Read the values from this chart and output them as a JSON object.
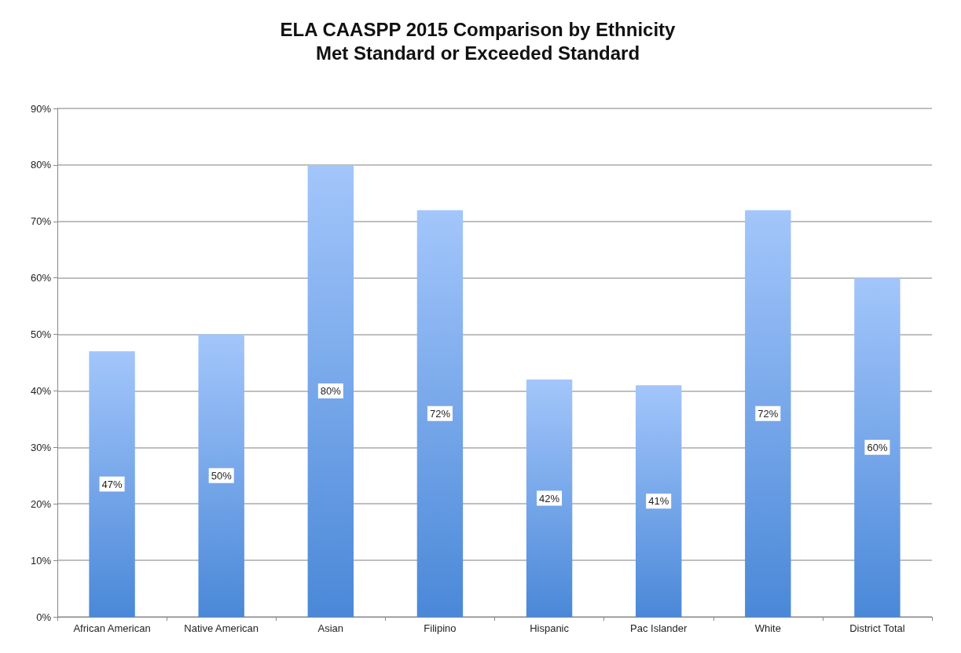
{
  "chart_data": {
    "type": "bar",
    "title": "ELA CAASPP 2015 Comparison by Ethnicity",
    "subtitle": "Met Standard or Exceeded Standard",
    "categories": [
      "African American",
      "Native American",
      "Asian",
      "Filipino",
      "Hispanic",
      "Pac Islander",
      "White",
      "District Total"
    ],
    "values": [
      47,
      50,
      80,
      72,
      42,
      41,
      72,
      60
    ],
    "value_labels": [
      "47%",
      "50%",
      "80%",
      "72%",
      "42%",
      "41%",
      "72%",
      "60%"
    ],
    "color": "#4a88d8",
    "ylim": [
      0,
      90
    ],
    "yticks": [
      {
        "value": 0,
        "label": "0%"
      },
      {
        "value": 10,
        "label": "10%"
      },
      {
        "value": 20,
        "label": "20%"
      },
      {
        "value": 30,
        "label": "30%"
      },
      {
        "value": 40,
        "label": "40%"
      },
      {
        "value": 50,
        "label": "50%"
      },
      {
        "value": 60,
        "label": "60%"
      },
      {
        "value": 70,
        "label": "70%"
      },
      {
        "value": 80,
        "label": "80%"
      },
      {
        "value": 90,
        "label": "90%"
      }
    ],
    "grid": "y"
  }
}
